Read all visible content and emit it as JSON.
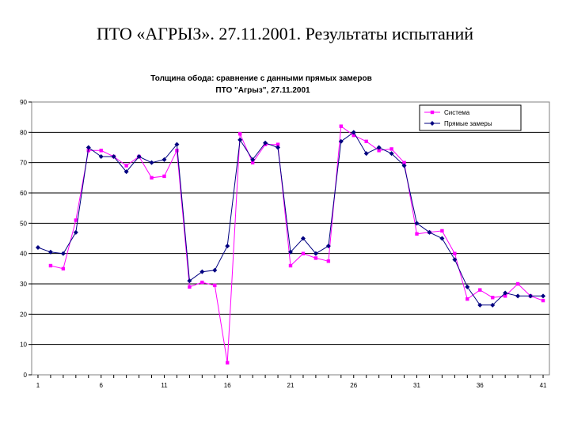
{
  "slide": {
    "title": "ПТО «АГРЫЗ». 27.11.2001. Результаты испытаний"
  },
  "chart_data": {
    "type": "line",
    "title_line1": "Толщина обода: сравнение с данными прямых замеров",
    "title_line2": "ПТО \"Агрыз\", 27.11.2001",
    "xlabel": "",
    "ylabel": "",
    "xlim": [
      1,
      41
    ],
    "ylim": [
      0,
      90
    ],
    "x_ticks": [
      1,
      6,
      11,
      16,
      21,
      26,
      31,
      36,
      41
    ],
    "y_ticks": [
      0,
      10,
      20,
      30,
      40,
      50,
      60,
      70,
      80,
      90
    ],
    "grid": "horizontal",
    "legend_position": "top-right",
    "colors": {
      "sistema": "#ff00ff",
      "zamery": "#000080",
      "grid": "#000000",
      "axis": "#808080"
    },
    "series": [
      {
        "name": "Система",
        "marker": "square",
        "color": "#ff00ff",
        "x": [
          2,
          3,
          4,
          5,
          6,
          7,
          8,
          9,
          10,
          11,
          12,
          13,
          14,
          15,
          16,
          17,
          18,
          19,
          20,
          21,
          22,
          23,
          24,
          25,
          26,
          27,
          28,
          29,
          30,
          31,
          32,
          33,
          34,
          35,
          36,
          37,
          38,
          39,
          40,
          41
        ],
        "values": [
          36,
          35,
          51,
          74,
          74,
          72,
          69,
          72,
          65,
          65.5,
          74,
          29,
          30.5,
          29.5,
          4,
          79.5,
          70,
          76,
          76,
          36,
          40,
          38.5,
          37.5,
          82,
          79,
          77,
          74,
          74.5,
          70,
          46.5,
          47,
          47.5,
          40,
          25,
          28,
          25.5,
          26,
          30,
          26,
          24.5
        ]
      },
      {
        "name": "Прямые замеры",
        "marker": "diamond",
        "color": "#000080",
        "x": [
          1,
          2,
          3,
          4,
          5,
          6,
          7,
          8,
          9,
          10,
          11,
          12,
          13,
          14,
          15,
          16,
          17,
          18,
          19,
          20,
          21,
          22,
          23,
          24,
          25,
          26,
          27,
          28,
          29,
          30,
          31,
          32,
          33,
          34,
          35,
          36,
          37,
          38,
          39,
          40,
          41
        ],
        "values": [
          42,
          40.5,
          40,
          47,
          75,
          72,
          72,
          67,
          72,
          70,
          71,
          76,
          31,
          34,
          34.5,
          42.5,
          77.5,
          71,
          76.5,
          75,
          40.5,
          45,
          40,
          42.5,
          77,
          80,
          73,
          75,
          73,
          69,
          50,
          47,
          45,
          38,
          29,
          23,
          23,
          27,
          26,
          26,
          26
        ]
      }
    ]
  }
}
